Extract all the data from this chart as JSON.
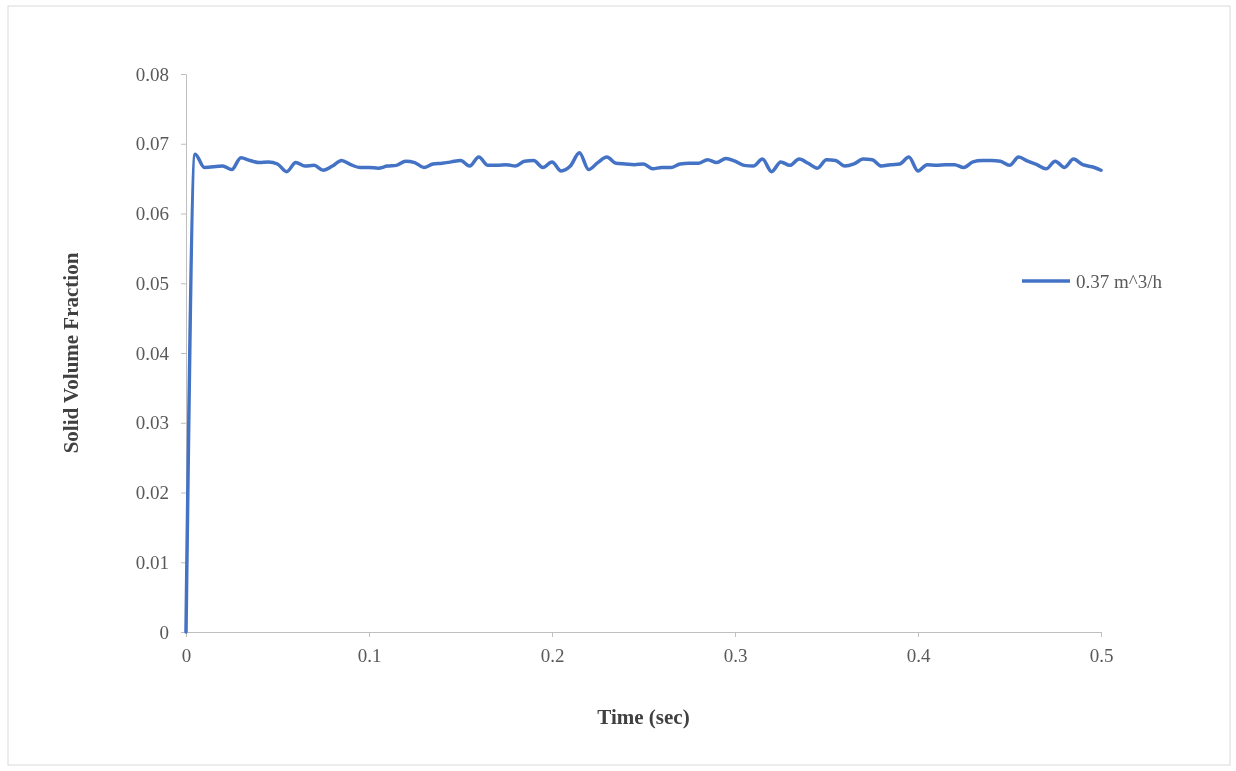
{
  "chart_data": {
    "type": "line",
    "xlabel": "Time (sec)",
    "ylabel": "Solid Volume Fraction",
    "xlim": [
      0,
      0.5
    ],
    "xticks": [
      0,
      0.1,
      0.2,
      0.3,
      0.4,
      0.5
    ],
    "ylim": [
      0,
      0.08
    ],
    "yticks": [
      0,
      0.01,
      0.02,
      0.03,
      0.04,
      0.05,
      0.06,
      0.07,
      0.08
    ],
    "legend": "right",
    "grid": false,
    "marker": "none",
    "line_style": "solid",
    "series": [
      {
        "name": "0.37 m^3/h",
        "color": "#4472c4",
        "x": [
          0,
          0.005,
          0.01,
          0.02,
          0.025,
          0.03,
          0.035,
          0.04,
          0.045,
          0.05,
          0.055,
          0.06,
          0.065,
          0.07,
          0.075,
          0.08,
          0.085,
          0.09,
          0.095,
          0.1,
          0.105,
          0.11,
          0.115,
          0.12,
          0.125,
          0.13,
          0.135,
          0.14,
          0.145,
          0.15,
          0.155,
          0.16,
          0.165,
          0.17,
          0.175,
          0.18,
          0.185,
          0.19,
          0.195,
          0.2,
          0.205,
          0.21,
          0.215,
          0.22,
          0.225,
          0.23,
          0.235,
          0.24,
          0.245,
          0.25,
          0.255,
          0.26,
          0.265,
          0.27,
          0.275,
          0.28,
          0.285,
          0.29,
          0.295,
          0.3,
          0.305,
          0.31,
          0.315,
          0.32,
          0.325,
          0.33,
          0.335,
          0.34,
          0.345,
          0.35,
          0.355,
          0.36,
          0.365,
          0.37,
          0.375,
          0.38,
          0.385,
          0.39,
          0.395,
          0.4,
          0.405,
          0.41,
          0.415,
          0.42,
          0.425,
          0.43,
          0.435,
          0.44,
          0.445,
          0.45,
          0.455,
          0.46,
          0.465,
          0.47,
          0.475,
          0.48,
          0.485,
          0.49,
          0.495,
          0.5
        ],
        "values": [
          0,
          0.0685,
          0.0666,
          0.0668,
          0.0663,
          0.068,
          0.0676,
          0.0673,
          0.0674,
          0.0671,
          0.066,
          0.0673,
          0.0668,
          0.0669,
          0.0662,
          0.0668,
          0.0676,
          0.067,
          0.0666,
          0.0666,
          0.0665,
          0.0668,
          0.0669,
          0.0675,
          0.0673,
          0.0666,
          0.0671,
          0.0672,
          0.0674,
          0.0676,
          0.0668,
          0.0681,
          0.0669,
          0.0669,
          0.067,
          0.0668,
          0.0675,
          0.0676,
          0.0666,
          0.0674,
          0.0661,
          0.0668,
          0.0687,
          0.0663,
          0.0673,
          0.0681,
          0.0672,
          0.0671,
          0.067,
          0.0671,
          0.0664,
          0.0666,
          0.0666,
          0.0671,
          0.0672,
          0.0672,
          0.0677,
          0.0673,
          0.0679,
          0.0675,
          0.0669,
          0.0668,
          0.0678,
          0.066,
          0.0674,
          0.0669,
          0.0678,
          0.0672,
          0.0665,
          0.0677,
          0.0676,
          0.0668,
          0.0671,
          0.0678,
          0.0677,
          0.0668,
          0.067,
          0.0671,
          0.0681,
          0.0661,
          0.067,
          0.0669,
          0.067,
          0.067,
          0.0666,
          0.0674,
          0.0676,
          0.0676,
          0.0675,
          0.0669,
          0.0681,
          0.0675,
          0.067,
          0.0664,
          0.0675,
          0.0666,
          0.0678,
          0.067,
          0.0667,
          0.0662
        ]
      }
    ]
  }
}
